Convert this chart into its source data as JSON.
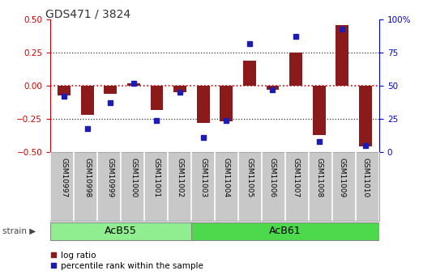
{
  "title": "GDS471 / 3824",
  "samples": [
    "GSM10997",
    "GSM10998",
    "GSM10999",
    "GSM11000",
    "GSM11001",
    "GSM11002",
    "GSM11003",
    "GSM11004",
    "GSM11005",
    "GSM11006",
    "GSM11007",
    "GSM11008",
    "GSM11009",
    "GSM11010"
  ],
  "log_ratio": [
    -0.07,
    -0.22,
    -0.06,
    0.02,
    -0.18,
    -0.05,
    -0.28,
    -0.27,
    0.19,
    -0.03,
    0.25,
    -0.37,
    0.46,
    -0.46
  ],
  "percentile": [
    42,
    18,
    37,
    52,
    24,
    45,
    11,
    24,
    82,
    47,
    87,
    8,
    93,
    5
  ],
  "n_group1": 6,
  "n_group2": 8,
  "group1_label": "AcB55",
  "group2_label": "AcB61",
  "strain_label": "strain",
  "bar_color": "#8B1A1A",
  "dot_color": "#1C1CB4",
  "zero_line_color": "#CC0000",
  "dotted_line_color": "#333333",
  "ylim_left": [
    -0.5,
    0.5
  ],
  "ylim_right": [
    0,
    100
  ],
  "yticks_left": [
    -0.5,
    -0.25,
    0,
    0.25,
    0.5
  ],
  "yticks_right": [
    0,
    25,
    50,
    75,
    100
  ],
  "left_axis_color": "#CC0000",
  "right_axis_color": "#0000CD",
  "group1_bg": "#90EE90",
  "group2_bg": "#4CD94C",
  "label_bg": "#C8C8C8",
  "bar_width": 0.55
}
